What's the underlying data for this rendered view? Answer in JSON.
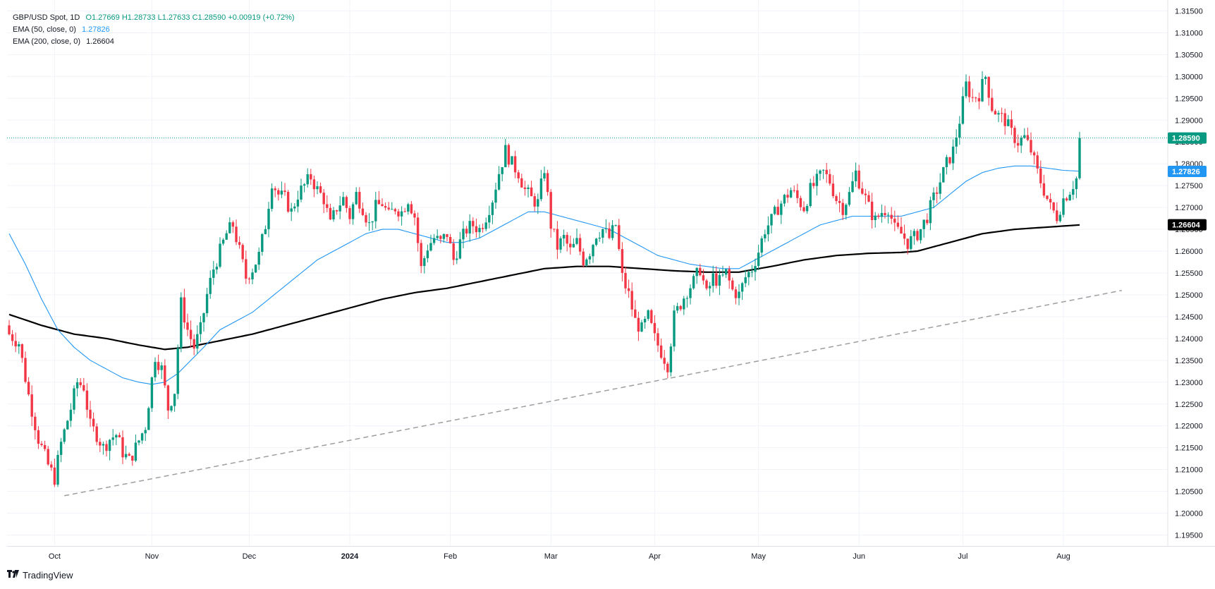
{
  "legend": {
    "symbol": "GBP/USD Spot, 1D",
    "open": "O1.27669",
    "high": "H1.28733",
    "low": "L1.27633",
    "close": "C1.28590",
    "change": "+0.00919 (+0.72%)",
    "ema50_label": "EMA (50, close, 0)",
    "ema50_value": "1.27826",
    "ema200_label": "EMA (200, close, 0)",
    "ema200_value": "1.26604"
  },
  "brand": {
    "name": "TradingView",
    "icon": "tradingview-logo-icon"
  },
  "colors": {
    "up": "#089981",
    "down": "#f23645",
    "ema50": "#2196f3",
    "ema200": "#000000",
    "trendline": "#9e9e9e",
    "grid": "#f0f3fa"
  },
  "chart_data": {
    "type": "candlestick",
    "y_axis_ticks": [
      "1.31500",
      "1.31000",
      "1.30500",
      "1.30000",
      "1.29500",
      "1.29000",
      "1.28500",
      "1.28000",
      "1.27500",
      "1.27000",
      "1.26500",
      "1.26000",
      "1.25500",
      "1.25000",
      "1.24500",
      "1.24000",
      "1.23500",
      "1.23000",
      "1.22500",
      "1.22000",
      "1.21500",
      "1.21000",
      "1.20500",
      "1.20000",
      "1.19500"
    ],
    "ylim": [
      1.1925,
      1.3175
    ],
    "x_axis_labels": [
      "Oct",
      "Nov",
      "Dec",
      "2024",
      "Feb",
      "Mar",
      "Apr",
      "May",
      "Jun",
      "Jul",
      "Aug"
    ],
    "price_labels": [
      {
        "name": "last_price",
        "value": "1.28590",
        "color": "#089981"
      },
      {
        "name": "ema50",
        "value": "1.27826",
        "color": "#2196f3"
      },
      {
        "name": "ema200",
        "value": "1.26604",
        "color": "#000000"
      }
    ],
    "last_price_line": 1.2859,
    "close_waypoints": [
      [
        0,
        1.241
      ],
      [
        3,
        1.239
      ],
      [
        6,
        1.227
      ],
      [
        9,
        1.217
      ],
      [
        12,
        1.211
      ],
      [
        14,
        1.208
      ],
      [
        16,
        1.216
      ],
      [
        19,
        1.224
      ],
      [
        21,
        1.23
      ],
      [
        23,
        1.229
      ],
      [
        25,
        1.22
      ],
      [
        27,
        1.218
      ],
      [
        29,
        1.215
      ],
      [
        31,
        1.217
      ],
      [
        33,
        1.218
      ],
      [
        35,
        1.214
      ],
      [
        37,
        1.212
      ],
      [
        39,
        1.215
      ],
      [
        42,
        1.22
      ],
      [
        45,
        1.236
      ],
      [
        47,
        1.233
      ],
      [
        49,
        1.224
      ],
      [
        51,
        1.228
      ],
      [
        53,
        1.248
      ],
      [
        55,
        1.242
      ],
      [
        57,
        1.238
      ],
      [
        59,
        1.242
      ],
      [
        61,
        1.25
      ],
      [
        63,
        1.256
      ],
      [
        65,
        1.26
      ],
      [
        67,
        1.264
      ],
      [
        69,
        1.266
      ],
      [
        71,
        1.26
      ],
      [
        73,
        1.254
      ],
      [
        75,
        1.256
      ],
      [
        77,
        1.259
      ],
      [
        79,
        1.266
      ],
      [
        81,
        1.276
      ],
      [
        83,
        1.273
      ],
      [
        85,
        1.272
      ],
      [
        87,
        1.269
      ],
      [
        89,
        1.273
      ],
      [
        91,
        1.275
      ],
      [
        93,
        1.277
      ],
      [
        95,
        1.274
      ],
      [
        97,
        1.272
      ],
      [
        99,
        1.266
      ],
      [
        101,
        1.27
      ],
      [
        103,
        1.272
      ],
      [
        105,
        1.268
      ],
      [
        107,
        1.273
      ],
      [
        109,
        1.27
      ],
      [
        111,
        1.266
      ],
      [
        113,
        1.27
      ],
      [
        115,
        1.271
      ],
      [
        117,
        1.268
      ],
      [
        119,
        1.27
      ],
      [
        121,
        1.269
      ],
      [
        123,
        1.272
      ],
      [
        125,
        1.268
      ],
      [
        127,
        1.256
      ],
      [
        129,
        1.261
      ],
      [
        131,
        1.263
      ],
      [
        133,
        1.262
      ],
      [
        135,
        1.264
      ],
      [
        137,
        1.258
      ],
      [
        139,
        1.262
      ],
      [
        141,
        1.265
      ],
      [
        143,
        1.266
      ],
      [
        145,
        1.265
      ],
      [
        147,
        1.268
      ],
      [
        149,
        1.272
      ],
      [
        151,
        1.278
      ],
      [
        153,
        1.283
      ],
      [
        155,
        1.28
      ],
      [
        157,
        1.278
      ],
      [
        159,
        1.274
      ],
      [
        161,
        1.272
      ],
      [
        163,
        1.271
      ],
      [
        165,
        1.279
      ],
      [
        167,
        1.266
      ],
      [
        169,
        1.261
      ],
      [
        171,
        1.263
      ],
      [
        173,
        1.26
      ],
      [
        175,
        1.262
      ],
      [
        177,
        1.258
      ],
      [
        179,
        1.26
      ],
      [
        181,
        1.264
      ],
      [
        183,
        1.265
      ],
      [
        185,
        1.263
      ],
      [
        187,
        1.266
      ],
      [
        189,
        1.254
      ],
      [
        191,
        1.25
      ],
      [
        193,
        1.244
      ],
      [
        195,
        1.242
      ],
      [
        197,
        1.245
      ],
      [
        199,
        1.24
      ],
      [
        201,
        1.237
      ],
      [
        203,
        1.234
      ],
      [
        205,
        1.245
      ],
      [
        207,
        1.248
      ],
      [
        209,
        1.251
      ],
      [
        211,
        1.253
      ],
      [
        213,
        1.256
      ],
      [
        215,
        1.25
      ],
      [
        217,
        1.254
      ],
      [
        219,
        1.253
      ],
      [
        221,
        1.255
      ],
      [
        223,
        1.251
      ],
      [
        225,
        1.25
      ],
      [
        227,
        1.254
      ],
      [
        229,
        1.256
      ],
      [
        231,
        1.26
      ],
      [
        233,
        1.265
      ],
      [
        235,
        1.267
      ],
      [
        237,
        1.27
      ],
      [
        239,
        1.272
      ],
      [
        241,
        1.274
      ],
      [
        243,
        1.272
      ],
      [
        245,
        1.27
      ],
      [
        247,
        1.274
      ],
      [
        249,
        1.276
      ],
      [
        251,
        1.278
      ],
      [
        253,
        1.276
      ],
      [
        255,
        1.272
      ],
      [
        257,
        1.27
      ],
      [
        259,
        1.273
      ],
      [
        261,
        1.278
      ],
      [
        263,
        1.274
      ],
      [
        265,
        1.27
      ],
      [
        267,
        1.267
      ],
      [
        269,
        1.269
      ],
      [
        271,
        1.27
      ],
      [
        273,
        1.265
      ],
      [
        275,
        1.264
      ],
      [
        277,
        1.262
      ],
      [
        279,
        1.263
      ],
      [
        281,
        1.265
      ],
      [
        283,
        1.268
      ],
      [
        285,
        1.272
      ],
      [
        287,
        1.276
      ],
      [
        289,
        1.28
      ],
      [
        291,
        1.283
      ],
      [
        293,
        1.29
      ],
      [
        295,
        1.298
      ],
      [
        297,
        1.295
      ],
      [
        299,
        1.296
      ],
      [
        301,
        1.3
      ],
      [
        303,
        1.293
      ],
      [
        305,
        1.291
      ],
      [
        307,
        1.29
      ],
      [
        309,
        1.287
      ],
      [
        311,
        1.285
      ],
      [
        313,
        1.286
      ],
      [
        315,
        1.283
      ],
      [
        317,
        1.278
      ],
      [
        319,
        1.274
      ],
      [
        321,
        1.27
      ],
      [
        323,
        1.268
      ],
      [
        325,
        1.272
      ],
      [
        327,
        1.274
      ],
      [
        329,
        1.2766
      ],
      [
        330,
        1.2859
      ]
    ],
    "ema50_waypoints": [
      [
        0,
        1.264
      ],
      [
        5,
        1.257
      ],
      [
        10,
        1.249
      ],
      [
        15,
        1.242
      ],
      [
        20,
        1.238
      ],
      [
        25,
        1.235
      ],
      [
        30,
        1.233
      ],
      [
        35,
        1.231
      ],
      [
        40,
        1.23
      ],
      [
        44,
        1.2295
      ],
      [
        48,
        1.23
      ],
      [
        52,
        1.232
      ],
      [
        56,
        1.235
      ],
      [
        60,
        1.238
      ],
      [
        65,
        1.242
      ],
      [
        70,
        1.244
      ],
      [
        75,
        1.246
      ],
      [
        80,
        1.249
      ],
      [
        85,
        1.252
      ],
      [
        90,
        1.255
      ],
      [
        95,
        1.258
      ],
      [
        100,
        1.26
      ],
      [
        105,
        1.262
      ],
      [
        110,
        1.264
      ],
      [
        115,
        1.265
      ],
      [
        120,
        1.265
      ],
      [
        125,
        1.264
      ],
      [
        130,
        1.263
      ],
      [
        135,
        1.262
      ],
      [
        140,
        1.262
      ],
      [
        145,
        1.263
      ],
      [
        150,
        1.265
      ],
      [
        155,
        1.267
      ],
      [
        160,
        1.269
      ],
      [
        165,
        1.269
      ],
      [
        170,
        1.268
      ],
      [
        175,
        1.267
      ],
      [
        180,
        1.266
      ],
      [
        185,
        1.265
      ],
      [
        190,
        1.263
      ],
      [
        195,
        1.261
      ],
      [
        200,
        1.259
      ],
      [
        205,
        1.258
      ],
      [
        210,
        1.257
      ],
      [
        215,
        1.2565
      ],
      [
        220,
        1.256
      ],
      [
        225,
        1.256
      ],
      [
        230,
        1.258
      ],
      [
        235,
        1.26
      ],
      [
        240,
        1.262
      ],
      [
        245,
        1.264
      ],
      [
        250,
        1.266
      ],
      [
        255,
        1.267
      ],
      [
        260,
        1.268
      ],
      [
        265,
        1.268
      ],
      [
        270,
        1.268
      ],
      [
        275,
        1.268
      ],
      [
        280,
        1.269
      ],
      [
        285,
        1.27
      ],
      [
        290,
        1.273
      ],
      [
        295,
        1.276
      ],
      [
        300,
        1.278
      ],
      [
        305,
        1.279
      ],
      [
        310,
        1.2795
      ],
      [
        315,
        1.2795
      ],
      [
        320,
        1.279
      ],
      [
        325,
        1.2785
      ],
      [
        330,
        1.2783
      ]
    ],
    "ema200_waypoints": [
      [
        0,
        1.2455
      ],
      [
        10,
        1.243
      ],
      [
        20,
        1.241
      ],
      [
        30,
        1.24
      ],
      [
        40,
        1.2385
      ],
      [
        48,
        1.2375
      ],
      [
        55,
        1.238
      ],
      [
        65,
        1.2395
      ],
      [
        75,
        1.241
      ],
      [
        85,
        1.243
      ],
      [
        95,
        1.245
      ],
      [
        105,
        1.247
      ],
      [
        115,
        1.249
      ],
      [
        125,
        1.2505
      ],
      [
        135,
        1.2515
      ],
      [
        145,
        1.253
      ],
      [
        155,
        1.2545
      ],
      [
        165,
        1.256
      ],
      [
        175,
        1.2565
      ],
      [
        185,
        1.2565
      ],
      [
        195,
        1.256
      ],
      [
        205,
        1.2555
      ],
      [
        215,
        1.2552
      ],
      [
        225,
        1.2552
      ],
      [
        235,
        1.2565
      ],
      [
        245,
        1.258
      ],
      [
        255,
        1.259
      ],
      [
        265,
        1.2595
      ],
      [
        275,
        1.2597
      ],
      [
        280,
        1.26
      ],
      [
        290,
        1.262
      ],
      [
        300,
        1.264
      ],
      [
        310,
        1.265
      ],
      [
        320,
        1.2655
      ],
      [
        330,
        1.266
      ]
    ],
    "trendline": {
      "start": [
        17,
        1.204
      ],
      "end": [
        343,
        1.251
      ],
      "dashed": true
    },
    "bar_count": 331,
    "grid": true
  }
}
